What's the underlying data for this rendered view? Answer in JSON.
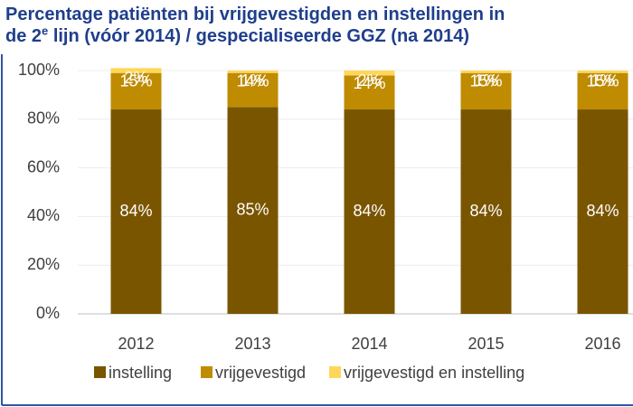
{
  "chart_data": {
    "type": "stacked_bar",
    "title": [
      "Percentage patiënten bij vrijgevestigden en instellingen in",
      "de 2",
      "e",
      " lijn (vóór 2014) / gespecialiseerde GGZ (na 2014)"
    ],
    "categories": [
      "2012",
      "2013",
      "2014",
      "2015",
      "2016"
    ],
    "series": [
      {
        "name": "instelling",
        "color": "#7a5500",
        "values": [
          84,
          85,
          84,
          84,
          84
        ],
        "value_labels": [
          "84%",
          "85%",
          "84%",
          "84%",
          "84%"
        ]
      },
      {
        "name": "vrijgevestigd",
        "color": "#bf8b00",
        "values": [
          15,
          14,
          14,
          15,
          15
        ],
        "value_labels": [
          "15%",
          "14%",
          "14%",
          "15%",
          "15%"
        ]
      },
      {
        "name": "vrijgevestigd en instelling",
        "color": "#ffd659",
        "values": [
          2,
          1,
          2,
          1,
          1
        ],
        "value_labels": [
          "2%",
          "1%",
          "2%",
          "1%",
          "1%"
        ]
      }
    ],
    "ylim": [
      0,
      100
    ],
    "yticks": [
      {
        "value": 0,
        "label": "0%"
      },
      {
        "value": 20,
        "label": "20%"
      },
      {
        "value": 40,
        "label": "40%"
      },
      {
        "value": 60,
        "label": "60%"
      },
      {
        "value": 80,
        "label": "80%"
      },
      {
        "value": 100,
        "label": "100%"
      }
    ],
    "grid": true,
    "legend": "bottom"
  }
}
